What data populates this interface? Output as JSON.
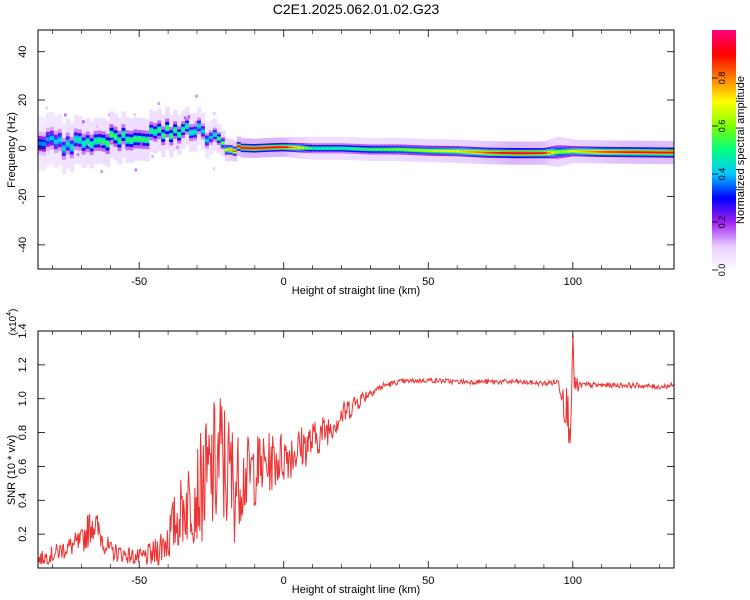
{
  "title": "C2E1.2025.062.01.02.G23",
  "colorbar": {
    "label": "Normalized spectral amplitude",
    "ticks": [
      "0.0",
      "0.2",
      "0.4",
      "0.6",
      "0.8"
    ],
    "tick_values": [
      0.0,
      0.2,
      0.4,
      0.6,
      0.8
    ],
    "range": [
      0,
      1
    ],
    "colormap": [
      "#ffffff",
      "#e6ccff",
      "#a020f0",
      "#0000ff",
      "#00c8ff",
      "#00ff80",
      "#80ff00",
      "#ffff00",
      "#ff8000",
      "#ff0000",
      "#ff0080"
    ]
  },
  "top_panel": {
    "xlabel": "Height of straight line (km)",
    "ylabel": "Frequency (Hz)",
    "xlim": [
      -85,
      135
    ],
    "ylim": [
      -50,
      49
    ],
    "xticks": [
      "-50",
      "0",
      "50",
      "100"
    ],
    "xtick_values": [
      -50,
      0,
      50,
      100
    ],
    "yticks": [
      "-40",
      "-20",
      "0",
      "20",
      "40"
    ],
    "ytick_values": [
      -40,
      -20,
      0,
      20,
      40
    ]
  },
  "bottom_panel": {
    "xlabel": "Height of straight line (km)",
    "ylabel": "SNR (10 * v/v)",
    "multiplier": "(x10",
    "multiplier_exp": "4",
    "xlim": [
      -85,
      135
    ],
    "ylim": [
      0,
      1.4
    ],
    "xticks": [
      "-50",
      "0",
      "50",
      "100"
    ],
    "xtick_values": [
      -50,
      0,
      50,
      100
    ],
    "yticks": [
      "0.2",
      "0.4",
      "0.6",
      "0.8",
      "1.0",
      "1.2",
      "1.4"
    ],
    "ytick_values": [
      0.2,
      0.4,
      0.6,
      0.8,
      1.0,
      1.2,
      1.4
    ],
    "line_color": "#ee3333"
  },
  "chart_data": [
    {
      "type": "heatmap",
      "xlabel": "Height of straight line (km)",
      "ylabel": "Frequency (Hz)",
      "xlim": [
        -85,
        135
      ],
      "ylim": [
        -50,
        49
      ],
      "colorbar_label": "Normalized spectral amplitude",
      "ridge": {
        "x": [
          -85,
          -75,
          -65,
          -60,
          -55,
          -50,
          -45,
          -40,
          -35,
          -30,
          -25,
          -20,
          -15,
          -10,
          -5,
          0,
          10,
          20,
          30,
          40,
          50,
          60,
          70,
          80,
          90,
          95,
          100,
          110,
          120,
          135
        ],
        "freq": [
          1.5,
          2.0,
          2.5,
          3.5,
          4.5,
          4.0,
          5.0,
          6.5,
          7.0,
          7.5,
          4.5,
          1.0,
          0.2,
          0.0,
          0.3,
          0.5,
          0.0,
          0.0,
          -0.5,
          -0.5,
          -1.0,
          -1.2,
          -1.8,
          -2.0,
          -2.0,
          -1.5,
          -1.2,
          -1.5,
          -1.6,
          -1.8
        ],
        "peak_amplitude": [
          0.35,
          0.45,
          0.5,
          0.55,
          0.5,
          0.55,
          0.5,
          0.55,
          0.5,
          0.45,
          0.4,
          0.65,
          0.95,
          0.95,
          0.95,
          0.95,
          0.5,
          0.5,
          0.55,
          0.6,
          0.65,
          0.7,
          0.85,
          0.95,
          0.9,
          0.6,
          0.7,
          0.85,
          0.9,
          0.9
        ],
        "width_hz": [
          14,
          13,
          12,
          12,
          12,
          11,
          11,
          11,
          10,
          10,
          9,
          6,
          5,
          5,
          5,
          5,
          6,
          6,
          6,
          6,
          6,
          6,
          6,
          6,
          6,
          8,
          6,
          6,
          6,
          6
        ]
      }
    },
    {
      "type": "line",
      "xlabel": "Height of straight line (km)",
      "ylabel": "SNR (10 * v/v)",
      "y_multiplier": 10000,
      "xlim": [
        -85,
        135
      ],
      "ylim": [
        0,
        1.4
      ],
      "series": [
        {
          "x": [
            -85,
            -80,
            -75,
            -70,
            -66,
            -63,
            -60,
            -55,
            -50,
            -45,
            -40,
            -35,
            -30,
            -25,
            -22,
            -20,
            -17,
            -15,
            -10,
            -5,
            0,
            5,
            10,
            15,
            20,
            25,
            30,
            35,
            40,
            50,
            60,
            70,
            80,
            90,
            95,
            97,
            99,
            100,
            101,
            103,
            110,
            120,
            130,
            135
          ],
          "y": [
            0.05,
            0.08,
            0.12,
            0.15,
            0.28,
            0.18,
            0.1,
            0.08,
            0.06,
            0.08,
            0.18,
            0.35,
            0.45,
            0.55,
            0.65,
            0.58,
            0.5,
            0.52,
            0.58,
            0.62,
            0.66,
            0.7,
            0.75,
            0.82,
            0.9,
            0.98,
            1.04,
            1.08,
            1.1,
            1.11,
            1.1,
            1.1,
            1.1,
            1.09,
            1.1,
            1.02,
            0.85,
            1.25,
            1.05,
            1.08,
            1.08,
            1.08,
            1.07,
            1.08
          ],
          "noise_amplitude": [
            0.04,
            0.05,
            0.06,
            0.08,
            0.12,
            0.08,
            0.06,
            0.05,
            0.05,
            0.08,
            0.15,
            0.22,
            0.3,
            0.4,
            0.45,
            0.4,
            0.35,
            0.25,
            0.22,
            0.18,
            0.16,
            0.14,
            0.12,
            0.1,
            0.08,
            0.06,
            0.03,
            0.02,
            0.015,
            0.015,
            0.015,
            0.015,
            0.015,
            0.015,
            0.02,
            0.15,
            0.15,
            0.15,
            0.08,
            0.02,
            0.015,
            0.015,
            0.015,
            0.015
          ]
        }
      ]
    }
  ]
}
